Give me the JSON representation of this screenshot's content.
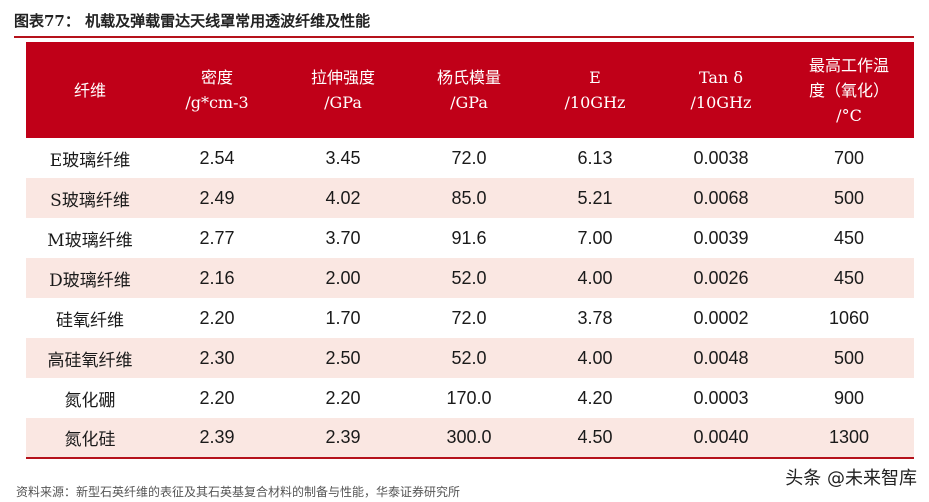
{
  "title": "图表77：  机载及弹载雷达天线罩常用透波纤维及性能",
  "table": {
    "headers": [
      [
        "纤维"
      ],
      [
        "密度",
        "/g*cm-3"
      ],
      [
        "拉伸强度",
        "/GPa"
      ],
      [
        "杨氏模量",
        "/GPa"
      ],
      [
        "E",
        "/10GHz"
      ],
      [
        "Tan δ",
        "/10GHz"
      ],
      [
        "最高工作温",
        "度（氧化）",
        "/°C"
      ]
    ],
    "rows": [
      [
        "E玻璃纤维",
        "2.54",
        "3.45",
        "72.0",
        "6.13",
        "0.0038",
        "700"
      ],
      [
        "S玻璃纤维",
        "2.49",
        "4.02",
        "85.0",
        "5.21",
        "0.0068",
        "500"
      ],
      [
        "M玻璃纤维",
        "2.77",
        "3.70",
        "91.6",
        "7.00",
        "0.0039",
        "450"
      ],
      [
        "D玻璃纤维",
        "2.16",
        "2.00",
        "52.0",
        "4.00",
        "0.0026",
        "450"
      ],
      [
        "硅氧纤维",
        "2.20",
        "1.70",
        "72.0",
        "3.78",
        "0.0002",
        "1060"
      ],
      [
        "高硅氧纤维",
        "2.30",
        "2.50",
        "52.0",
        "4.00",
        "0.0048",
        "500"
      ],
      [
        "氮化硼",
        "2.20",
        "2.20",
        "170.0",
        "4.20",
        "0.0003",
        "900"
      ],
      [
        "氮化硅",
        "2.39",
        "2.39",
        "300.0",
        "4.50",
        "0.0040",
        "1300"
      ]
    ]
  },
  "source": "资料来源：新型石英纤维的表征及其石英基复合材料的制备与性能，华泰证券研究所",
  "watermark": "头条 @未来智库",
  "colors": {
    "header_bg": "#c00018",
    "row_shade": "#fae7e2",
    "accent": "#b5121b"
  }
}
